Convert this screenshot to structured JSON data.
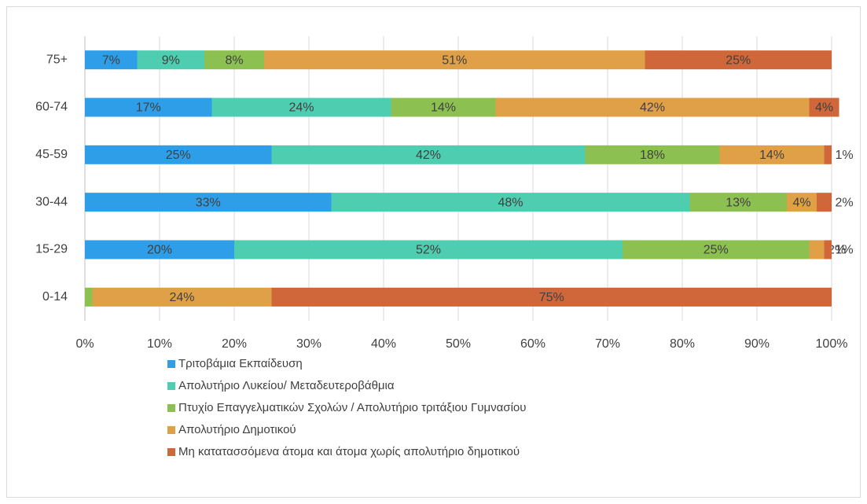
{
  "chart_data": {
    "type": "bar",
    "orientation": "horizontal",
    "stacked": true,
    "categories": [
      "75+",
      "60-74",
      "45-59",
      "30-44",
      "15-29",
      "0-14"
    ],
    "series": [
      {
        "name": "Τριτοβάμια Εκπαίδευση",
        "color": "#2f9ee8",
        "values": [
          7,
          17,
          25,
          33,
          20,
          0
        ],
        "value_labels": [
          "7%",
          "17%",
          "25%",
          "33%",
          "20%",
          null
        ]
      },
      {
        "name": "Απολυτήριο Λυκείου/  Μεταδευτεροβάθμια",
        "color": "#4ecdb0",
        "values": [
          9,
          24,
          42,
          48,
          52,
          0
        ],
        "value_labels": [
          "9%",
          "24%",
          "42%",
          "48%",
          "52%",
          null
        ]
      },
      {
        "name": "Πτυχίο Επαγγελματικών Σχολών / Απολυτήριο τριτάξιου Γυμνασίου",
        "color": "#8cc152",
        "values": [
          8,
          14,
          18,
          13,
          25,
          1
        ],
        "value_labels": [
          "8%",
          "14%",
          "18%",
          "13%",
          "25%",
          null
        ]
      },
      {
        "name": "Απολυτήριο Δημοτικού",
        "color": "#dfa048",
        "values": [
          51,
          42,
          14,
          4,
          2,
          24
        ],
        "value_labels": [
          "51%",
          "42%",
          "14%",
          "4%",
          "2%",
          "24%"
        ]
      },
      {
        "name": "Μη κατατασσόμενα άτομα και άτομα χωρίς απολυτήριο δημοτικού",
        "color": "#d0673a",
        "values": [
          25,
          4,
          1,
          2,
          1,
          75
        ],
        "value_labels": [
          "25%",
          "4%",
          "1%",
          "2%",
          "1%",
          "75%"
        ]
      }
    ],
    "xlim": [
      0,
      100
    ],
    "xticks": [
      {
        "value": 0,
        "label": "0%"
      },
      {
        "value": 10,
        "label": "10%"
      },
      {
        "value": 20,
        "label": "20%"
      },
      {
        "value": 30,
        "label": "30%"
      },
      {
        "value": 40,
        "label": "40%"
      },
      {
        "value": 50,
        "label": "50%"
      },
      {
        "value": 60,
        "label": "60%"
      },
      {
        "value": 70,
        "label": "70%"
      },
      {
        "value": 80,
        "label": "80%"
      },
      {
        "value": 90,
        "label": "90%"
      },
      {
        "value": 100,
        "label": "100%"
      }
    ],
    "grid": true,
    "legend": "bottom"
  }
}
